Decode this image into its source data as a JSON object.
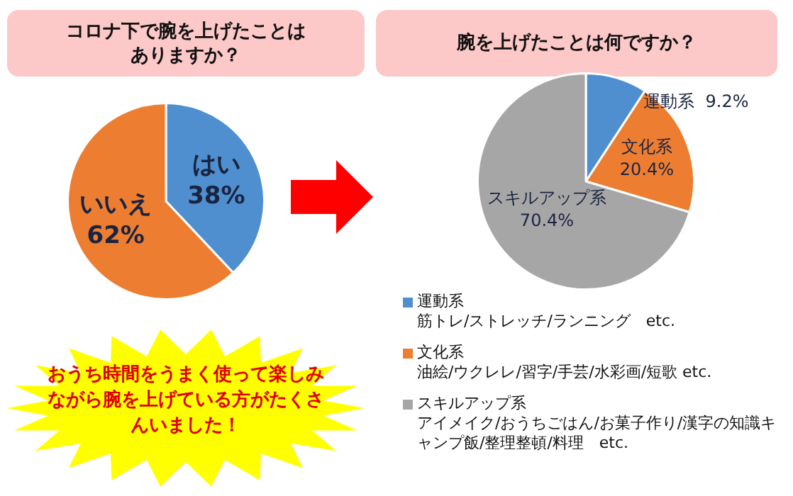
{
  "chart_data": [
    {
      "type": "pie",
      "title": "コロナ下で腕を上げたことはありますか？",
      "categories": [
        "はい",
        "いいえ"
      ],
      "values": [
        38,
        62
      ],
      "colors": [
        "#4f8fd0",
        "#ed7d31"
      ],
      "value_labels": [
        "38%",
        "62%"
      ],
      "annotations": [
        "おうち時間をうまく使って楽しみながら腕を上げている方がたくさんいました！"
      ]
    },
    {
      "type": "pie",
      "title": "腕を上げたことは何ですか？",
      "categories": [
        "運動系",
        "文化系",
        "スキルアップ系"
      ],
      "values": [
        9.2,
        20.4,
        70.4
      ],
      "colors": [
        "#4f8fd0",
        "#ed7d31",
        "#a6a6a6"
      ],
      "value_labels": [
        "9.2%",
        "20.4%",
        "70.4%"
      ],
      "legend": "bottom",
      "annotations": [
        "筋トレ/ストレッチ/ランニング　etc.",
        "油絵/ウクレレ/習字/手芸/水彩画/短歌 etc.",
        "アイメイク/おうちごはん/お菓子作り/漢字の知識キャンプ飯/整理整頓/料理　etc."
      ]
    }
  ]
}
